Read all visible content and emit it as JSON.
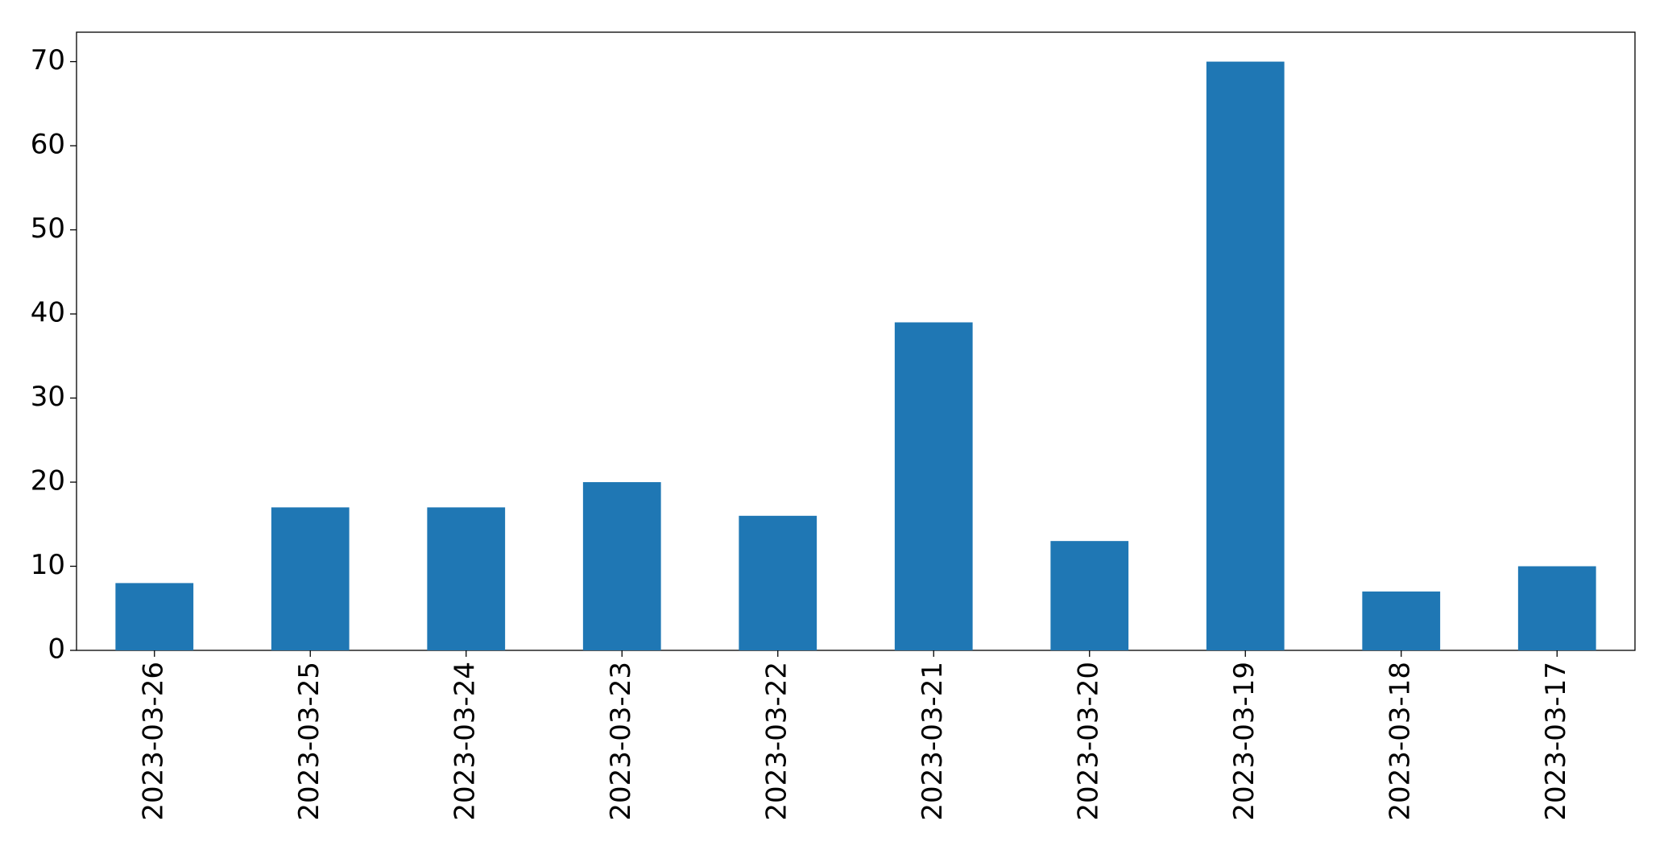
{
  "chart_data": {
    "type": "bar",
    "categories": [
      "2023-03-26",
      "2023-03-25",
      "2023-03-24",
      "2023-03-23",
      "2023-03-22",
      "2023-03-21",
      "2023-03-20",
      "2023-03-19",
      "2023-03-18",
      "2023-03-17"
    ],
    "values": [
      8,
      17,
      17,
      20,
      16,
      39,
      13,
      70,
      7,
      10
    ],
    "color": "#1f77b4",
    "ylim": [
      0,
      73.5
    ],
    "yticks": [
      0,
      10,
      20,
      30,
      40,
      50,
      60,
      70
    ],
    "grid": false
  }
}
